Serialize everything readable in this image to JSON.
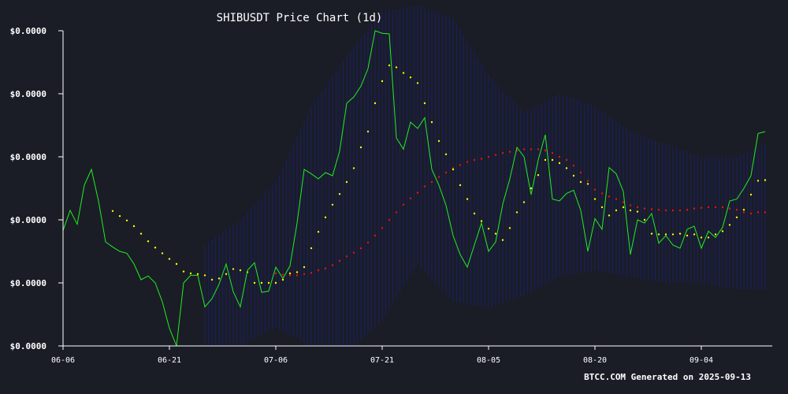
{
  "chart_data": {
    "type": "line",
    "title": "SHIBUSDT Price Chart (1d)",
    "xlabel": "",
    "ylabel": "",
    "footer": "BTCC.COM Generated on 2025-09-13",
    "y_tick_labels": [
      "$0.0000",
      "$0.0000",
      "$0.0000",
      "$0.0000",
      "$0.0000",
      "$0.0000"
    ],
    "y_ticks": [
      0,
      1,
      2,
      3,
      4,
      5
    ],
    "ylim": [
      0,
      5
    ],
    "x_tick_labels": [
      "06-06",
      "06-21",
      "07-06",
      "07-21",
      "08-05",
      "08-20",
      "09-04"
    ],
    "x_ticks": [
      0,
      15,
      30,
      45,
      60,
      75,
      90
    ],
    "xlim": [
      0,
      100
    ],
    "grid": false,
    "colors": {
      "background": "#1a1d26",
      "price": "#22ee22",
      "sma_short": "#ffff00",
      "sma_long": "#ee1111",
      "bands": "#1c1f6e",
      "axis": "#ffffff"
    },
    "series": [
      {
        "role": "price",
        "x": [
          0,
          1,
          2,
          3,
          4,
          5,
          6,
          7,
          8,
          9,
          10,
          11,
          12,
          13,
          14,
          15,
          16,
          17,
          18,
          19,
          20,
          21,
          22,
          23,
          24,
          25,
          26,
          27,
          28,
          29,
          30,
          31,
          32,
          33,
          34,
          35,
          36,
          37,
          38,
          39,
          40,
          41,
          42,
          43,
          44,
          45,
          46,
          47,
          48,
          49,
          50,
          51,
          52,
          53,
          54,
          55,
          56,
          57,
          58,
          59,
          60,
          61,
          62,
          63,
          64,
          65,
          66,
          67,
          68,
          69,
          70,
          71,
          72,
          73,
          74,
          75,
          76,
          77,
          78,
          79,
          80,
          81,
          82,
          83,
          84,
          85,
          86,
          87,
          88,
          89,
          90,
          91,
          92,
          93,
          94,
          95,
          96,
          97,
          98,
          99
        ],
        "values": [
          1.83,
          2.15,
          1.93,
          2.55,
          2.8,
          2.3,
          1.65,
          1.57,
          1.5,
          1.47,
          1.3,
          1.05,
          1.11,
          1.0,
          0.7,
          0.28,
          0.0,
          1.0,
          1.12,
          1.12,
          0.62,
          0.75,
          0.98,
          1.3,
          0.86,
          0.62,
          1.2,
          1.32,
          0.85,
          0.87,
          1.25,
          1.07,
          1.27,
          1.95,
          2.8,
          2.73,
          2.65,
          2.75,
          2.7,
          3.09,
          3.85,
          3.95,
          4.12,
          4.4,
          5.0,
          4.96,
          4.95,
          3.3,
          3.12,
          3.55,
          3.45,
          3.62,
          2.8,
          2.55,
          2.23,
          1.75,
          1.45,
          1.25,
          1.6,
          1.95,
          1.5,
          1.65,
          2.25,
          2.65,
          3.15,
          3.0,
          2.4,
          2.95,
          3.35,
          2.33,
          2.3,
          2.42,
          2.47,
          2.15,
          1.5,
          2.02,
          1.85,
          2.83,
          2.73,
          2.45,
          1.45,
          2.0,
          1.95,
          2.1,
          1.63,
          1.75,
          1.6,
          1.55,
          1.85,
          1.9,
          1.55,
          1.82,
          1.72,
          1.88,
          2.3,
          2.33,
          2.5,
          2.7,
          3.37,
          3.4
        ]
      },
      {
        "role": "sma_short",
        "x": [
          7,
          8,
          9,
          10,
          11,
          12,
          13,
          14,
          15,
          16,
          17,
          18,
          19,
          20,
          21,
          22,
          23,
          24,
          25,
          26,
          27,
          28,
          29,
          30,
          31,
          32,
          33,
          34,
          35,
          36,
          37,
          38,
          39,
          40,
          41,
          42,
          43,
          44,
          45,
          46,
          47,
          48,
          49,
          50,
          51,
          52,
          53,
          54,
          55,
          56,
          57,
          58,
          59,
          60,
          61,
          62,
          63,
          64,
          65,
          66,
          67,
          68,
          69,
          70,
          71,
          72,
          73,
          74,
          75,
          76,
          77,
          78,
          79,
          80,
          81,
          82,
          83,
          84,
          85,
          86,
          87,
          88,
          89,
          90,
          91,
          92,
          93,
          94,
          95,
          96,
          97,
          98,
          99
        ],
        "values": [
          2.14,
          2.06,
          1.99,
          1.9,
          1.78,
          1.66,
          1.56,
          1.47,
          1.38,
          1.3,
          1.18,
          1.15,
          1.14,
          1.12,
          1.05,
          1.07,
          1.14,
          1.22,
          1.2,
          1.17,
          1.0,
          1.0,
          1.0,
          1.0,
          1.05,
          1.15,
          1.17,
          1.25,
          1.55,
          1.81,
          2.04,
          2.24,
          2.41,
          2.6,
          2.82,
          3.15,
          3.4,
          3.85,
          4.2,
          4.45,
          4.42,
          4.33,
          4.26,
          4.17,
          3.85,
          3.55,
          3.25,
          3.04,
          2.8,
          2.55,
          2.33,
          2.1,
          1.98,
          1.86,
          1.78,
          1.68,
          1.87,
          2.12,
          2.28,
          2.5,
          2.71,
          2.95,
          2.95,
          2.9,
          2.82,
          2.7,
          2.6,
          2.57,
          2.33,
          2.2,
          2.07,
          2.15,
          2.2,
          2.15,
          2.13,
          2.0,
          1.78,
          1.77,
          1.77,
          1.77,
          1.78,
          1.75,
          1.77,
          1.72,
          1.72,
          1.77,
          1.82,
          1.92,
          2.04,
          2.16,
          2.4,
          2.62,
          2.63
        ]
      },
      {
        "role": "sma_long",
        "x": [
          30,
          31,
          32,
          33,
          34,
          35,
          36,
          37,
          38,
          39,
          40,
          41,
          42,
          43,
          44,
          45,
          46,
          47,
          48,
          49,
          50,
          51,
          52,
          53,
          54,
          55,
          56,
          57,
          58,
          59,
          60,
          61,
          62,
          63,
          64,
          65,
          66,
          67,
          68,
          69,
          70,
          71,
          72,
          73,
          74,
          75,
          76,
          77,
          78,
          79,
          80,
          81,
          82,
          83,
          84,
          85,
          86,
          87,
          88,
          89,
          90,
          91,
          92,
          93,
          94,
          95,
          96,
          97,
          98,
          99
        ],
        "values": [
          1.15,
          1.13,
          1.12,
          1.12,
          1.14,
          1.16,
          1.2,
          1.23,
          1.28,
          1.35,
          1.42,
          1.48,
          1.55,
          1.64,
          1.75,
          1.87,
          2.0,
          2.12,
          2.24,
          2.34,
          2.43,
          2.53,
          2.6,
          2.68,
          2.75,
          2.82,
          2.87,
          2.92,
          2.95,
          2.97,
          3.0,
          3.03,
          3.06,
          3.08,
          3.1,
          3.12,
          3.12,
          3.12,
          3.1,
          3.06,
          3.0,
          2.95,
          2.86,
          2.75,
          2.62,
          2.48,
          2.42,
          2.37,
          2.33,
          2.28,
          2.23,
          2.2,
          2.18,
          2.17,
          2.16,
          2.15,
          2.15,
          2.15,
          2.16,
          2.18,
          2.19,
          2.2,
          2.2,
          2.2,
          2.18,
          2.16,
          2.12,
          2.1,
          2.12,
          2.12
        ]
      },
      {
        "role": "bands",
        "x": [
          20,
          25,
          30,
          35,
          40,
          45,
          50,
          55,
          60,
          65,
          70,
          75,
          80,
          85,
          90,
          95,
          99
        ],
        "upper": [
          1.6,
          2.0,
          2.6,
          3.8,
          4.6,
          5.3,
          5.4,
          5.2,
          4.3,
          3.7,
          4.0,
          3.8,
          3.4,
          3.2,
          3.0,
          3.0,
          3.2
        ],
        "lower": [
          0.0,
          0.0,
          0.3,
          0.0,
          -0.1,
          0.4,
          1.3,
          0.7,
          0.6,
          0.8,
          1.1,
          1.2,
          1.1,
          1.0,
          1.0,
          0.9,
          0.9
        ]
      }
    ]
  }
}
